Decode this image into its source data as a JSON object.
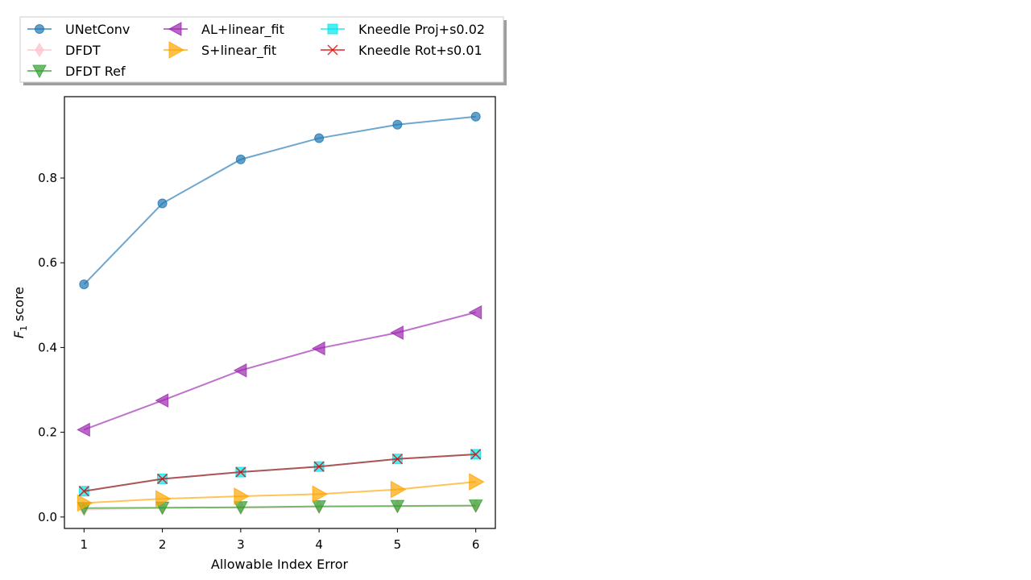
{
  "chart_data": {
    "type": "line",
    "title": "",
    "xlabel": "Allowable Index Error",
    "ylabel_main": "F",
    "ylabel_sub": "1",
    "ylabel_suffix": " score",
    "x": [
      1,
      2,
      3,
      4,
      5,
      6
    ],
    "xticks": [
      1,
      2,
      3,
      4,
      5,
      6
    ],
    "yticks": [
      0.0,
      0.2,
      0.4,
      0.6,
      0.8
    ],
    "xlim": [
      0.75,
      6.25
    ],
    "ylim": [
      -0.027,
      0.992
    ],
    "grid": false,
    "legend_position": "top",
    "series": [
      {
        "name": "UNetConv",
        "color": "#1f77b4",
        "marker": "circle",
        "values": [
          0.549,
          0.74,
          0.844,
          0.894,
          0.926,
          0.945
        ]
      },
      {
        "name": "DFDT",
        "color": "#ffc0cb",
        "marker": "thin_diamond",
        "values": [
          0.018,
          0.021,
          0.022,
          0.024,
          0.025,
          0.026
        ]
      },
      {
        "name": "DFDT Ref",
        "color": "#2ca02c",
        "marker": "triangle_down",
        "values": [
          0.021,
          0.022,
          0.023,
          0.025,
          0.026,
          0.027
        ]
      },
      {
        "name": "AL+linear_fit",
        "color": "#9c27b0",
        "marker": "triangle_left",
        "values": [
          0.206,
          0.275,
          0.346,
          0.398,
          0.435,
          0.483
        ]
      },
      {
        "name": "S+linear_fit",
        "color": "#ffa500",
        "marker": "triangle_right",
        "values": [
          0.033,
          0.043,
          0.049,
          0.054,
          0.065,
          0.083
        ]
      },
      {
        "name": "Kneedle Proj+s0.02",
        "color": "#00e5ee",
        "marker": "square",
        "values": [
          0.061,
          0.09,
          0.106,
          0.119,
          0.137,
          0.148
        ]
      },
      {
        "name": "Kneedle Rot+s0.01",
        "color": "#e00000",
        "marker": "x",
        "values": [
          0.061,
          0.09,
          0.106,
          0.119,
          0.137,
          0.148
        ]
      }
    ]
  }
}
